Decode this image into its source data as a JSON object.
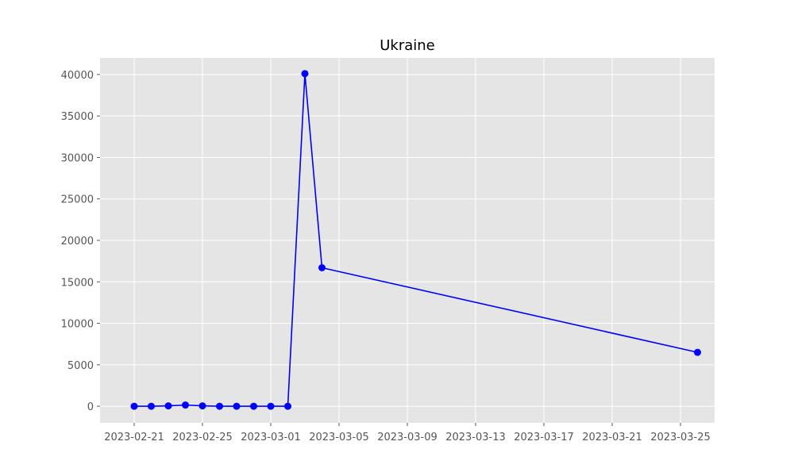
{
  "chart_data": {
    "type": "line",
    "title": "Ukraine",
    "xlabel": "",
    "ylabel": "",
    "x_tick_labels": [
      "2023-02-21",
      "2023-02-25",
      "2023-03-01",
      "2023-03-05",
      "2023-03-09",
      "2023-03-13",
      "2023-03-17",
      "2023-03-21",
      "2023-03-25"
    ],
    "y_tick_labels": [
      "0",
      "5000",
      "10000",
      "15000",
      "20000",
      "25000",
      "30000",
      "35000",
      "40000"
    ],
    "x_range": [
      "2023-02-19",
      "2023-03-27"
    ],
    "ylim": [
      -2000,
      42000
    ],
    "grid": true,
    "legend": "none",
    "series": [
      {
        "x": [
          "2023-02-21",
          "2023-02-22",
          "2023-02-23",
          "2023-02-24",
          "2023-02-25",
          "2023-02-26",
          "2023-02-27",
          "2023-02-28",
          "2023-03-01",
          "2023-03-02",
          "2023-03-03",
          "2023-03-04",
          "2023-03-26"
        ],
        "values": [
          0,
          0,
          50,
          150,
          50,
          0,
          0,
          0,
          0,
          0,
          40100,
          16700,
          6500
        ]
      }
    ],
    "colors": {
      "line": "#0000ff",
      "marker": "#0000ff",
      "plot_background": "#e5e5e5",
      "grid": "#ffffff"
    }
  }
}
